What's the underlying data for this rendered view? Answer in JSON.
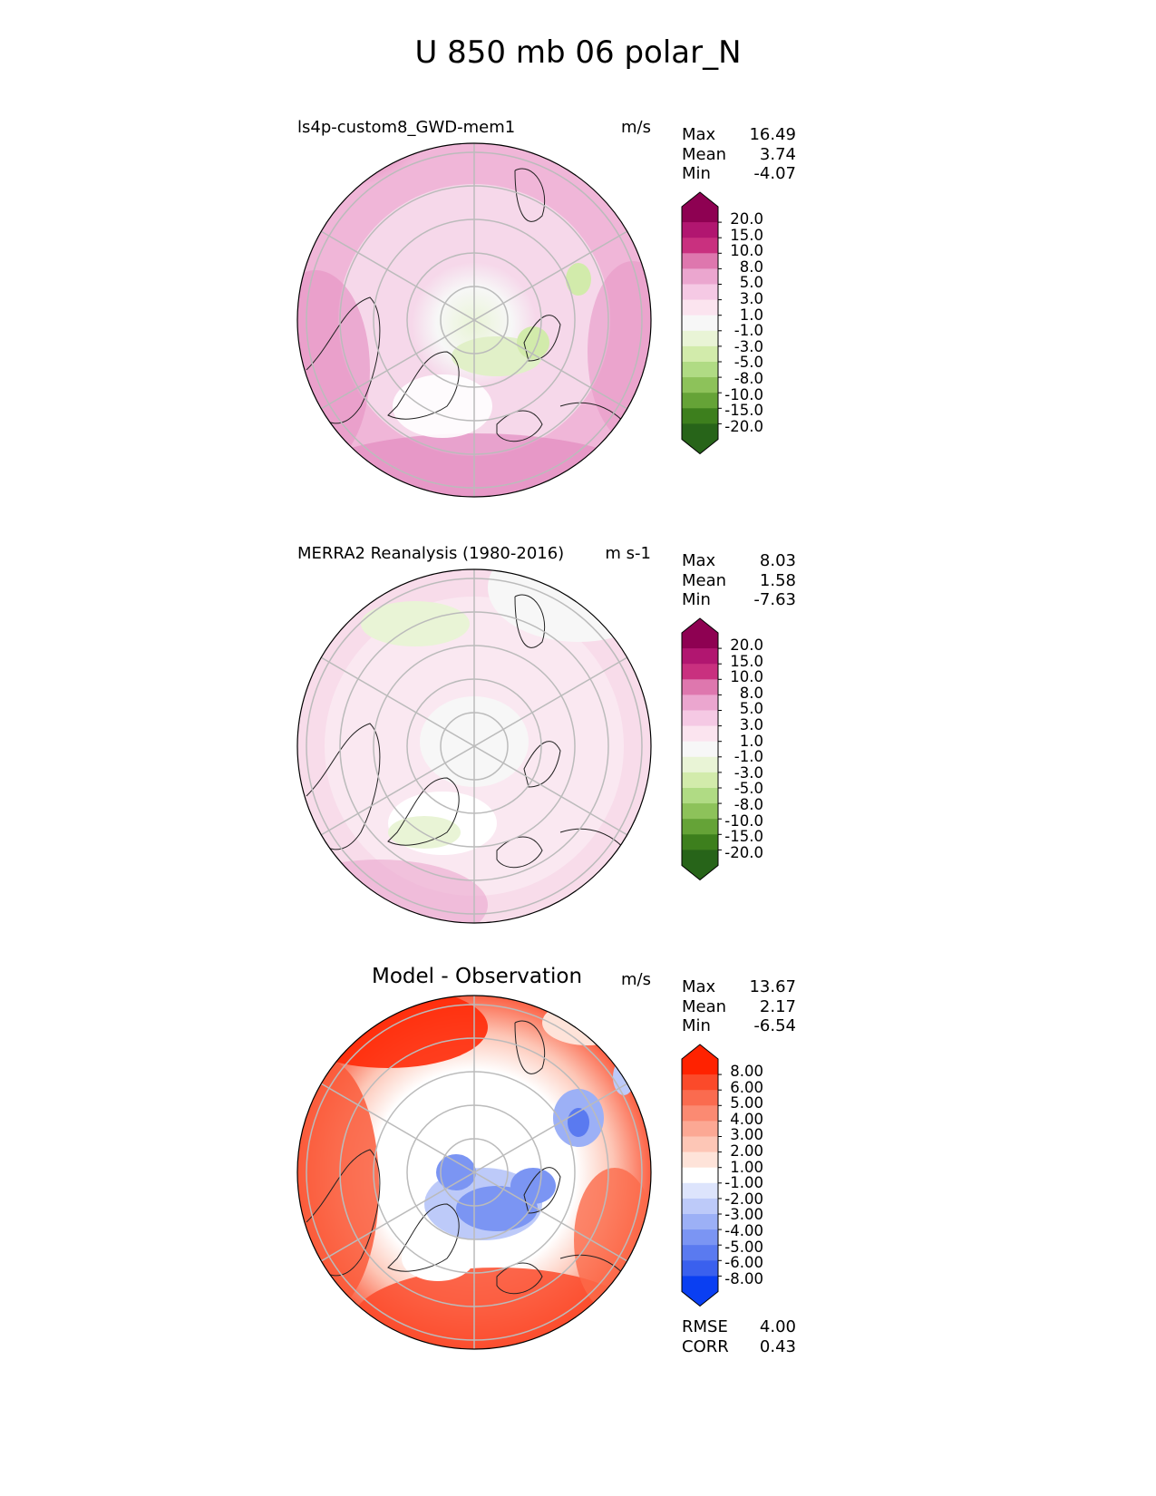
{
  "figure": {
    "title": "U 850 mb 06 polar_N"
  },
  "chart_data": [
    {
      "type": "heatmap",
      "projection": "north-polar-stereographic",
      "title": "ls4p-custom8_GWD-mem1",
      "units": "m/s",
      "stats": {
        "max": "16.49",
        "mean": "3.74",
        "min": "-4.07"
      },
      "colorbar": {
        "levels": [
          "20.0",
          "15.0",
          "10.0",
          "8.0",
          "5.0",
          "3.0",
          "1.0",
          "-1.0",
          "-3.0",
          "-5.0",
          "-8.0",
          "-10.0",
          "-15.0",
          "-20.0"
        ],
        "colors": [
          "#8e0152",
          "#b11670",
          "#c9307f",
          "#de77ae",
          "#eba6cf",
          "#f5c9e4",
          "#fbe4ef",
          "#f7f7f7",
          "#e9f4d6",
          "#d2ebab",
          "#b0db84",
          "#8dc25a",
          "#65a337",
          "#3d7f1d",
          "#276419"
        ]
      },
      "background_color": "#f6d8ea"
    },
    {
      "type": "heatmap",
      "projection": "north-polar-stereographic",
      "title": "MERRA2 Reanalysis (1980-2016)",
      "units": "m s-1",
      "stats": {
        "max": "8.03",
        "mean": "1.58",
        "min": "-7.63"
      },
      "colorbar": {
        "levels": [
          "20.0",
          "15.0",
          "10.0",
          "8.0",
          "5.0",
          "3.0",
          "1.0",
          "-1.0",
          "-3.0",
          "-5.0",
          "-8.0",
          "-10.0",
          "-15.0",
          "-20.0"
        ],
        "colors": [
          "#8e0152",
          "#b11670",
          "#c9307f",
          "#de77ae",
          "#eba6cf",
          "#f5c9e4",
          "#fbe4ef",
          "#f7f7f7",
          "#e9f4d6",
          "#d2ebab",
          "#b0db84",
          "#8dc25a",
          "#65a337",
          "#3d7f1d",
          "#276419"
        ]
      },
      "background_color": "#fae6f1"
    },
    {
      "type": "heatmap",
      "projection": "north-polar-stereographic",
      "title": "Model - Observation",
      "units": "m/s",
      "stats": {
        "max": "13.67",
        "mean": "2.17",
        "min": "-6.54"
      },
      "colorbar": {
        "levels": [
          "8.00",
          "6.00",
          "5.00",
          "4.00",
          "3.00",
          "2.00",
          "1.00",
          "-1.00",
          "-2.00",
          "-3.00",
          "-4.00",
          "-5.00",
          "-6.00",
          "-8.00"
        ],
        "colors": [
          "#ff2200",
          "#fb4a2a",
          "#fa6b4f",
          "#fb8a72",
          "#fca894",
          "#fdc6b6",
          "#fee3d9",
          "#ffffff",
          "#dde4fc",
          "#bdcaf9",
          "#9cb0f6",
          "#7b95f3",
          "#5a7af0",
          "#3a60ee",
          "#0a3ff2"
        ]
      },
      "background_color": "#fbe2da",
      "metrics": {
        "rmse_label": "RMSE",
        "rmse": "4.00",
        "corr_label": "CORR",
        "corr": "0.43"
      }
    }
  ],
  "labels": {
    "max": "Max",
    "mean": "Mean",
    "min": "Min"
  }
}
